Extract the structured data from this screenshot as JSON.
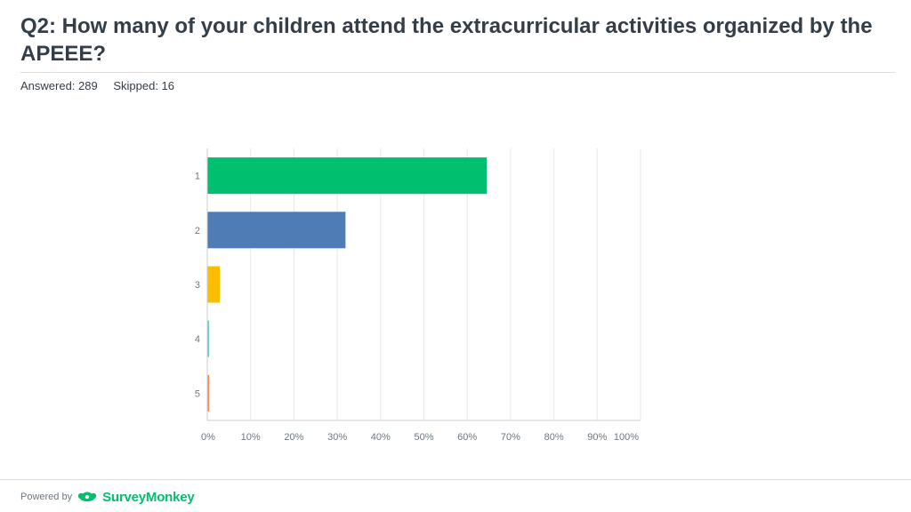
{
  "header": {
    "title": "Q2: How many of your children attend the extracurricular activities organized by the APEEE?",
    "answered": "Answered: 289",
    "skipped": "Skipped: 16"
  },
  "footer": {
    "powered_by": "Powered by",
    "brand": "SurveyMonkey",
    "brand_color": "#00bf6f"
  },
  "chart_data": {
    "type": "bar",
    "orientation": "horizontal",
    "categories": [
      "1",
      "2",
      "3",
      "4",
      "5"
    ],
    "values": [
      64.4,
      31.8,
      2.8,
      0.3,
      0.3
    ],
    "colors": [
      "#00bf6f",
      "#507cb6",
      "#f9be00",
      "#6bc8cd",
      "#ff8b4f"
    ],
    "xlim": [
      0,
      100
    ],
    "xticks": [
      "0%",
      "10%",
      "20%",
      "30%",
      "40%",
      "50%",
      "60%",
      "70%",
      "80%",
      "90%",
      "100%"
    ],
    "grid": true
  }
}
